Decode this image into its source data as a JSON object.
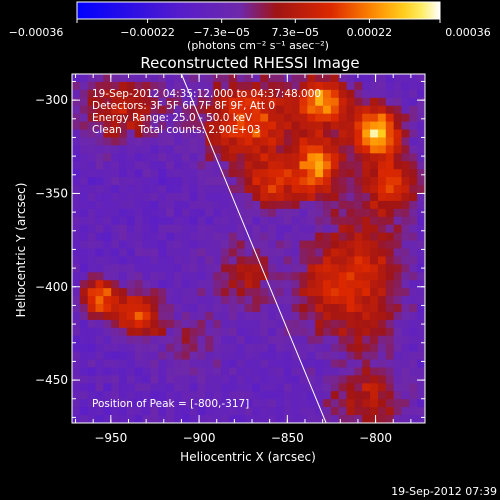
{
  "chart_data": {
    "type": "heatmap",
    "title": "Reconstructed RHESSI Image",
    "xlabel": "Heliocentric X (arcsec)",
    "ylabel": "Heliocentric Y (arcsec)",
    "xlim": [
      -972,
      -772
    ],
    "ylim": [
      -473,
      -286
    ],
    "x_ticks": [
      -950,
      -900,
      -850,
      -800
    ],
    "y_ticks": [
      -300,
      -350,
      -400,
      -450
    ],
    "colorbar": {
      "min": -0.00036,
      "max": 0.00036,
      "ticks": [
        -0.00036,
        -0.00022,
        -7.3e-05,
        7.3e-05,
        0.00022,
        0.00036
      ],
      "tick_labels": [
        "-0.00036",
        "-0.00022",
        "-7.3e-05",
        "7.3e-05",
        "0.00022",
        "0.00036"
      ],
      "units": "(photons cm⁻² s⁻¹ asec⁻²)"
    },
    "annotations": {
      "time_range": "19-Sep-2012 04:35:12.000 to 04:37:48.000",
      "detectors": "Detectors: 3F 5F 6F 7F 8F 9F, Att 0",
      "energy_range": "Energy Range: 25.0 - 50.0 keV",
      "method_counts": "Clean     Total counts: 2.90E+03",
      "peak_position": "Position of Peak = [-800,-317]"
    },
    "limb_line": {
      "x": [
        -910,
        -828
      ],
      "y": [
        -286,
        -473
      ]
    },
    "sources": [
      {
        "x": -800,
        "y": -317,
        "sx": 10,
        "sy": 10,
        "amp": 1.0
      },
      {
        "x": -830,
        "y": -300,
        "sx": 11,
        "sy": 9,
        "amp": 0.8
      },
      {
        "x": -833,
        "y": -335,
        "sx": 9,
        "sy": 12,
        "amp": 0.75
      },
      {
        "x": -872,
        "y": -312,
        "sx": 18,
        "sy": 16,
        "amp": 0.7
      },
      {
        "x": -858,
        "y": -345,
        "sx": 11,
        "sy": 9,
        "amp": 0.55
      },
      {
        "x": -790,
        "y": -345,
        "sx": 10,
        "sy": 10,
        "amp": 0.55
      },
      {
        "x": -805,
        "y": -395,
        "sx": 14,
        "sy": 30,
        "amp": 0.5
      },
      {
        "x": -830,
        "y": -400,
        "sx": 12,
        "sy": 18,
        "amp": 0.4
      },
      {
        "x": -945,
        "y": -305,
        "sx": 18,
        "sy": 12,
        "amp": 0.45
      },
      {
        "x": -935,
        "y": -415,
        "sx": 9,
        "sy": 9,
        "amp": 0.7
      },
      {
        "x": -957,
        "y": -406,
        "sx": 7,
        "sy": 7,
        "amp": 0.8
      },
      {
        "x": -875,
        "y": -395,
        "sx": 14,
        "sy": 14,
        "amp": 0.35
      },
      {
        "x": -805,
        "y": -460,
        "sx": 15,
        "sy": 10,
        "amp": 0.4
      },
      {
        "x": -905,
        "y": -430,
        "sx": 12,
        "sy": 10,
        "amp": 0.25
      }
    ],
    "value_scale": {
      "background": -0.0001,
      "peak": 0.00036
    }
  },
  "footer": {
    "timestamp": "19-Sep-2012 07:39"
  }
}
